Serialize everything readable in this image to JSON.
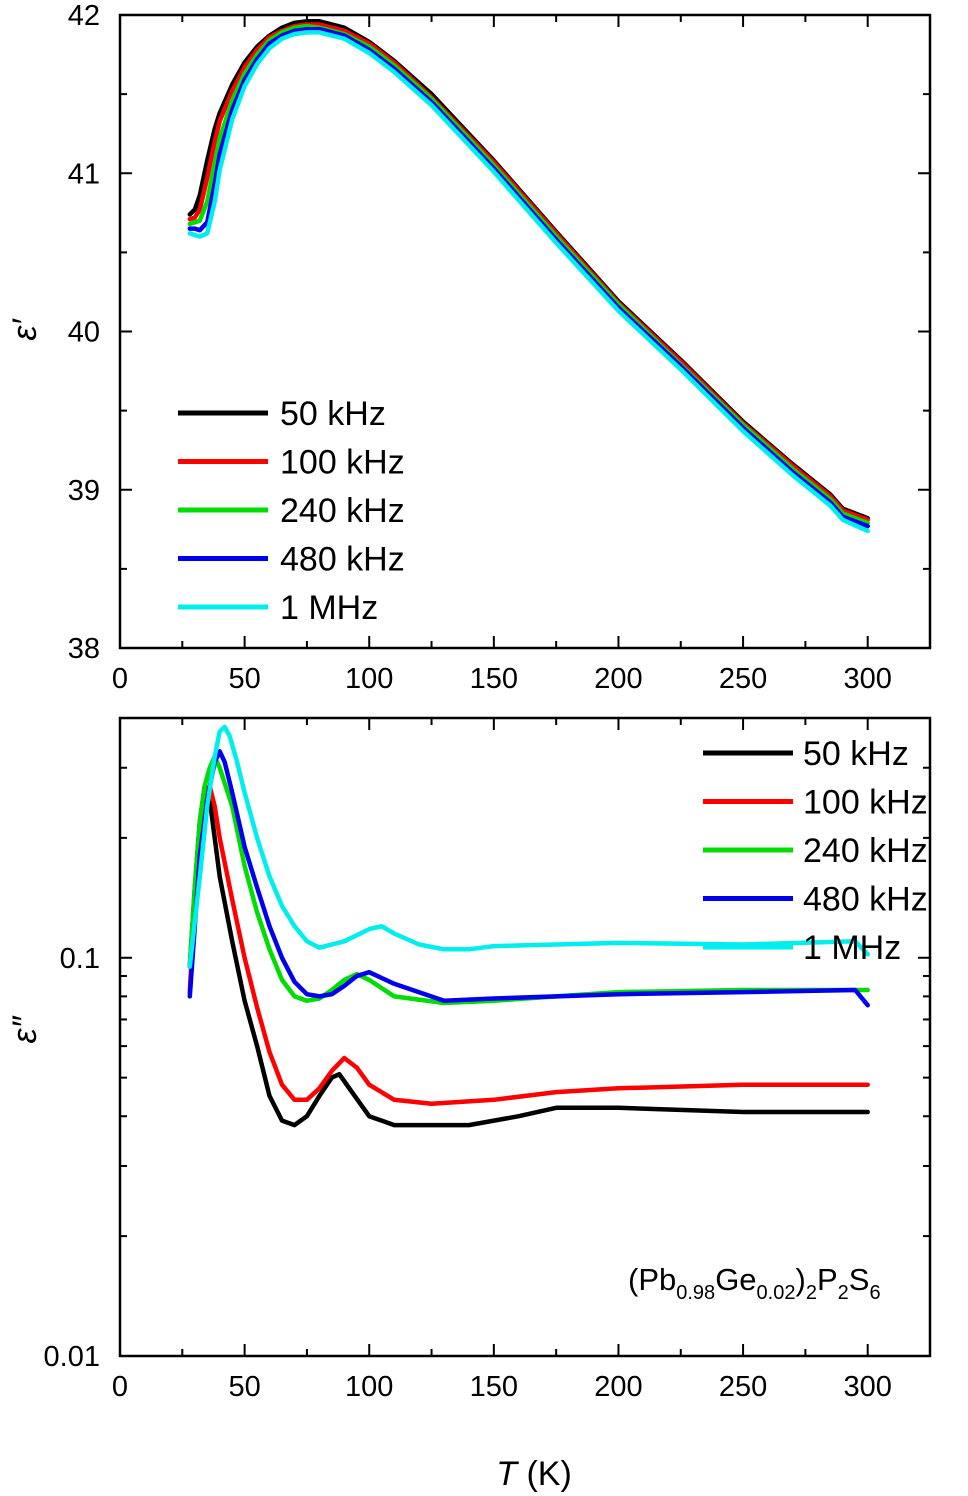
{
  "chart_data": [
    {
      "type": "line",
      "panel": "top",
      "xlabel": "",
      "ylabel": "ε′",
      "xlim": [
        0,
        325
      ],
      "ylim": [
        38,
        42
      ],
      "xticks": [
        0,
        50,
        100,
        150,
        200,
        250,
        300
      ],
      "xtick_labels": [
        "0",
        "50",
        "100",
        "150",
        "200",
        "250",
        "300"
      ],
      "yticks": [
        38,
        39,
        40,
        41,
        42
      ],
      "ytick_labels": [
        "38",
        "39",
        "40",
        "41",
        "42"
      ],
      "yscale": "linear",
      "grid": false,
      "legend_position": "bottom-left",
      "series": [
        {
          "name": "50 kHz",
          "color": "#000000",
          "x": [
            28,
            30,
            32,
            35,
            38,
            40,
            45,
            50,
            55,
            60,
            65,
            70,
            75,
            80,
            90,
            100,
            110,
            125,
            150,
            175,
            200,
            225,
            250,
            270,
            285,
            290,
            300
          ],
          "y": [
            40.74,
            40.77,
            40.86,
            41.08,
            41.28,
            41.38,
            41.56,
            41.7,
            41.8,
            41.87,
            41.92,
            41.95,
            41.96,
            41.96,
            41.92,
            41.83,
            41.71,
            41.5,
            41.08,
            40.63,
            40.19,
            39.82,
            39.43,
            39.16,
            38.97,
            38.88,
            38.82
          ]
        },
        {
          "name": "100 kHz",
          "color": "#ff0000",
          "x": [
            28,
            30,
            32,
            35,
            38,
            40,
            45,
            50,
            55,
            60,
            65,
            70,
            75,
            80,
            90,
            100,
            110,
            125,
            150,
            175,
            200,
            225,
            250,
            270,
            285,
            290,
            300
          ],
          "y": [
            40.71,
            40.72,
            40.77,
            40.97,
            41.2,
            41.33,
            41.52,
            41.67,
            41.78,
            41.86,
            41.9,
            41.93,
            41.94,
            41.94,
            41.9,
            41.82,
            41.7,
            41.48,
            41.07,
            40.62,
            40.18,
            39.81,
            39.42,
            39.15,
            38.96,
            38.87,
            38.81
          ]
        },
        {
          "name": "240 kHz",
          "color": "#00dd00",
          "x": [
            28,
            30,
            32,
            35,
            38,
            40,
            45,
            50,
            55,
            60,
            65,
            70,
            75,
            80,
            90,
            100,
            110,
            125,
            150,
            175,
            200,
            225,
            250,
            270,
            285,
            290,
            300
          ],
          "y": [
            40.68,
            40.69,
            40.7,
            40.82,
            41.06,
            41.22,
            41.46,
            41.63,
            41.75,
            41.84,
            41.89,
            41.92,
            41.93,
            41.92,
            41.88,
            41.8,
            41.68,
            41.47,
            41.05,
            40.6,
            40.17,
            39.79,
            39.41,
            39.13,
            38.94,
            38.85,
            38.79
          ]
        },
        {
          "name": "480 kHz",
          "color": "#0000ee",
          "x": [
            28,
            30,
            32,
            35,
            38,
            40,
            45,
            50,
            55,
            60,
            65,
            70,
            75,
            80,
            90,
            100,
            110,
            125,
            150,
            175,
            200,
            225,
            250,
            270,
            285,
            290,
            300
          ],
          "y": [
            40.65,
            40.65,
            40.64,
            40.69,
            40.93,
            41.12,
            41.4,
            41.59,
            41.72,
            41.82,
            41.87,
            41.9,
            41.91,
            41.91,
            41.87,
            41.78,
            41.66,
            41.45,
            41.03,
            40.58,
            40.15,
            39.78,
            39.39,
            39.11,
            38.92,
            38.83,
            38.77
          ]
        },
        {
          "name": "1 MHz",
          "color": "#00eeee",
          "x": [
            28,
            30,
            32,
            35,
            38,
            40,
            45,
            50,
            55,
            60,
            65,
            70,
            75,
            80,
            90,
            100,
            110,
            125,
            150,
            175,
            200,
            225,
            250,
            270,
            285,
            290,
            300
          ],
          "y": [
            40.62,
            40.61,
            40.6,
            40.62,
            40.82,
            41.02,
            41.34,
            41.55,
            41.69,
            41.79,
            41.85,
            41.88,
            41.89,
            41.89,
            41.85,
            41.76,
            41.64,
            41.43,
            41.01,
            40.56,
            40.13,
            39.76,
            39.37,
            39.09,
            38.9,
            38.81,
            38.74
          ]
        }
      ]
    },
    {
      "type": "line",
      "panel": "bottom",
      "xlabel": "T (K)",
      "ylabel": "ε″",
      "xlim": [
        0,
        325
      ],
      "ylim": [
        0.01,
        0.4
      ],
      "xticks": [
        0,
        50,
        100,
        150,
        200,
        250,
        300
      ],
      "xtick_labels": [
        "0",
        "50",
        "100",
        "150",
        "200",
        "250",
        "300"
      ],
      "yticks": [
        0.01,
        0.1
      ],
      "ytick_labels": [
        "0.01",
        "0.1"
      ],
      "yscale": "log",
      "grid": false,
      "legend_position": "top-right",
      "annotation": {
        "pre": "(Pb",
        "s1": "0.98",
        "mid1": "Ge",
        "s2": "0.02",
        "mid2": ")",
        "s3": "2",
        "mid3": "P",
        "s4": "2",
        "mid4": "S",
        "s5": "6"
      },
      "series": [
        {
          "name": "50 kHz",
          "color": "#000000",
          "x": [
            28,
            30,
            32,
            34,
            36,
            38,
            40,
            45,
            50,
            55,
            60,
            65,
            70,
            75,
            80,
            85,
            88,
            92,
            100,
            110,
            140,
            160,
            175,
            200,
            250,
            300
          ],
          "y": [
            0.095,
            0.15,
            0.22,
            0.27,
            0.25,
            0.2,
            0.16,
            0.11,
            0.078,
            0.06,
            0.045,
            0.039,
            0.038,
            0.04,
            0.045,
            0.05,
            0.051,
            0.047,
            0.04,
            0.038,
            0.038,
            0.04,
            0.042,
            0.042,
            0.041,
            0.041
          ]
        },
        {
          "name": "100 kHz",
          "color": "#ff0000",
          "x": [
            28,
            30,
            32,
            34,
            36,
            38,
            40,
            45,
            50,
            55,
            60,
            65,
            70,
            75,
            80,
            85,
            90,
            95,
            100,
            110,
            125,
            150,
            175,
            200,
            250,
            300
          ],
          "y": [
            0.082,
            0.14,
            0.21,
            0.25,
            0.27,
            0.24,
            0.2,
            0.14,
            0.1,
            0.075,
            0.058,
            0.048,
            0.044,
            0.044,
            0.047,
            0.052,
            0.056,
            0.053,
            0.048,
            0.044,
            0.043,
            0.044,
            0.046,
            0.047,
            0.048,
            0.048
          ]
        },
        {
          "name": "240 kHz",
          "color": "#00dd00",
          "x": [
            28,
            30,
            32,
            34,
            36,
            38,
            40,
            45,
            50,
            55,
            60,
            65,
            70,
            75,
            80,
            85,
            90,
            95,
            100,
            110,
            130,
            150,
            175,
            200,
            250,
            300
          ],
          "y": [
            0.095,
            0.15,
            0.22,
            0.27,
            0.3,
            0.32,
            0.3,
            0.24,
            0.17,
            0.13,
            0.105,
            0.088,
            0.08,
            0.078,
            0.079,
            0.083,
            0.088,
            0.091,
            0.088,
            0.08,
            0.077,
            0.078,
            0.08,
            0.082,
            0.083,
            0.083
          ]
        },
        {
          "name": "480 kHz",
          "color": "#0000ee",
          "x": [
            28,
            30,
            32,
            35,
            38,
            40,
            42,
            45,
            50,
            55,
            60,
            65,
            70,
            75,
            80,
            85,
            90,
            95,
            100,
            110,
            130,
            150,
            175,
            200,
            250,
            295,
            300
          ],
          "y": [
            0.08,
            0.12,
            0.18,
            0.25,
            0.31,
            0.33,
            0.31,
            0.26,
            0.19,
            0.15,
            0.12,
            0.1,
            0.087,
            0.081,
            0.08,
            0.081,
            0.085,
            0.09,
            0.092,
            0.086,
            0.078,
            0.079,
            0.08,
            0.081,
            0.082,
            0.083,
            0.076
          ]
        },
        {
          "name": "1 MHz",
          "color": "#00eeee",
          "x": [
            28,
            32,
            35,
            38,
            40,
            42,
            44,
            47,
            50,
            55,
            60,
            65,
            70,
            75,
            80,
            90,
            100,
            105,
            110,
            120,
            130,
            140,
            150,
            175,
            200,
            250,
            295,
            300
          ],
          "y": [
            0.095,
            0.16,
            0.24,
            0.32,
            0.37,
            0.38,
            0.36,
            0.31,
            0.26,
            0.2,
            0.16,
            0.135,
            0.12,
            0.11,
            0.106,
            0.11,
            0.118,
            0.12,
            0.115,
            0.108,
            0.105,
            0.105,
            0.107,
            0.108,
            0.109,
            0.108,
            0.11,
            0.102
          ]
        }
      ]
    }
  ]
}
